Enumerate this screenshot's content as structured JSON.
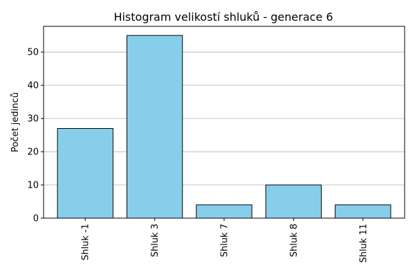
{
  "chart_data": {
    "type": "bar",
    "title": "Histogram velikostí shluků - generace 6",
    "xlabel": "",
    "ylabel": "Počet jedinců",
    "categories": [
      "Shluk -1",
      "Shluk 3",
      "Shluk 7",
      "Shluk 8",
      "Shluk 11"
    ],
    "values": [
      27,
      55,
      4,
      10,
      4
    ],
    "ylim": [
      0,
      57.75
    ],
    "yticks": [
      0,
      10,
      20,
      30,
      40,
      50
    ],
    "grid": "y",
    "bar_color": "#87ceeb",
    "edge_color": "#000000",
    "grid_color": "#b0b0b0"
  }
}
